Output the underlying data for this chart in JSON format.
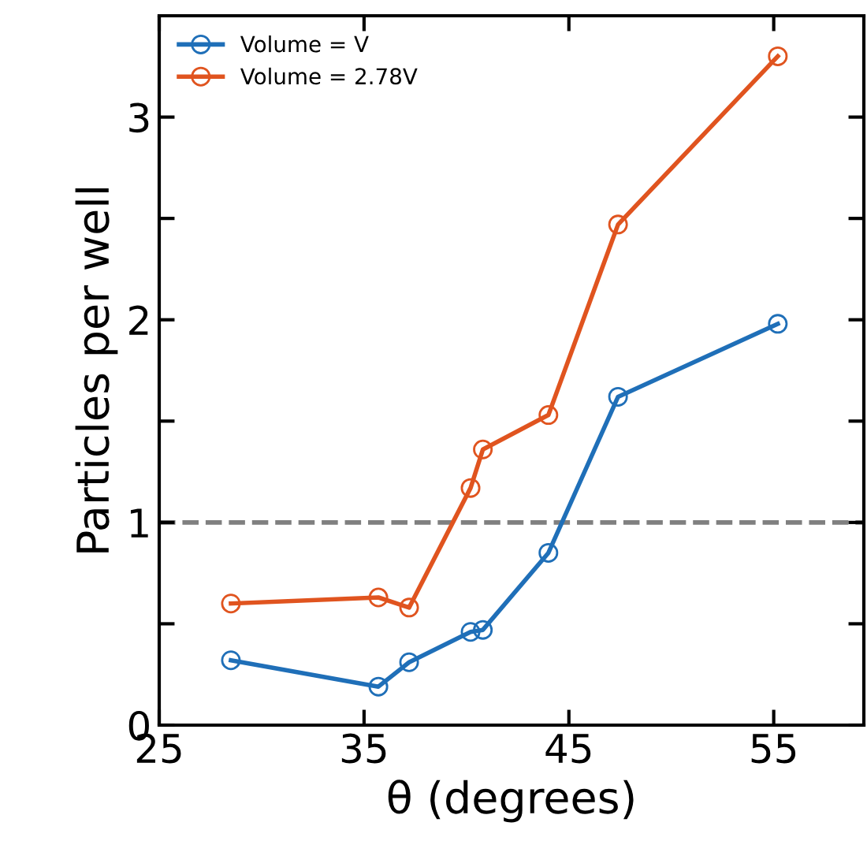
{
  "chart_data": {
    "type": "line",
    "xlabel": "θ (degrees)",
    "ylabel": "Particles per well",
    "xlim": [
      25,
      59.4
    ],
    "xticks": [
      25,
      35,
      45,
      55
    ],
    "ylim": [
      0,
      3.5
    ],
    "yticks": [
      0,
      {
        "value": 0.5,
        "label": null
      },
      1,
      {
        "value": 1.5,
        "label": null
      },
      2,
      {
        "value": 2.5,
        "label": null
      },
      3
    ],
    "marker": "circle",
    "legend": "top left",
    "grid": false,
    "ref_lines": [
      {
        "axis": "y",
        "value": 1,
        "color": "#808080",
        "line_style": "dashed"
      }
    ],
    "series": [
      {
        "name": "Volume = V",
        "color": "#1f6fb8",
        "x": [
          28.5,
          35.7,
          37.2,
          40.2,
          40.8,
          44.0,
          47.4,
          55.2
        ],
        "values": [
          0.32,
          0.19,
          0.31,
          0.46,
          0.47,
          0.85,
          1.62,
          1.98
        ]
      },
      {
        "name": "Volume = 2.78V",
        "color": "#e0541f",
        "x": [
          28.5,
          35.7,
          37.2,
          40.2,
          40.8,
          44.0,
          47.4,
          55.2
        ],
        "values": [
          0.6,
          0.63,
          0.58,
          1.17,
          1.36,
          1.53,
          2.47,
          3.3
        ]
      }
    ]
  }
}
